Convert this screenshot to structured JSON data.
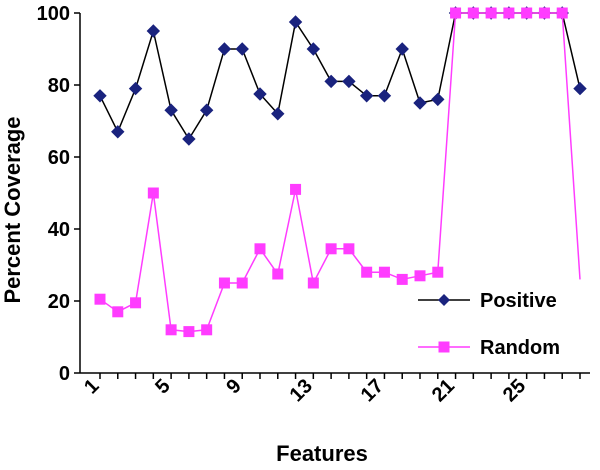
{
  "chart_data": {
    "type": "line",
    "xlabel": "Features",
    "ylabel": "Percent Coverage",
    "xlim": [
      1,
      28
    ],
    "ylim": [
      0,
      100
    ],
    "yticks": [
      0,
      20,
      40,
      60,
      80,
      100
    ],
    "xticks": [
      1,
      5,
      9,
      13,
      17,
      21,
      25
    ],
    "grid": false,
    "legend_position": "bottom-right",
    "x": [
      1,
      2,
      3,
      4,
      5,
      6,
      7,
      8,
      9,
      10,
      11,
      12,
      13,
      14,
      15,
      16,
      17,
      18,
      19,
      20,
      21,
      22,
      23,
      24,
      25,
      26,
      27,
      28
    ],
    "series": [
      {
        "name": "Positive",
        "color": "#1a237e",
        "marker": "diamond",
        "values": [
          77,
          67,
          79,
          95,
          73,
          65,
          73,
          90,
          90,
          77.5,
          72,
          97.5,
          90,
          81,
          81,
          77,
          77,
          90,
          75,
          76,
          100,
          100,
          100,
          100,
          100,
          100,
          100,
          79
        ]
      },
      {
        "name": "Random",
        "color": "#ff3cff",
        "marker": "square",
        "values": [
          20.5,
          17,
          19.5,
          50,
          12,
          11.5,
          12,
          25,
          25,
          34.5,
          27.5,
          51,
          25,
          34.5,
          34.5,
          28,
          28,
          26,
          27,
          28,
          100,
          100,
          100,
          100,
          100,
          100,
          100,
          26
        ]
      }
    ]
  }
}
